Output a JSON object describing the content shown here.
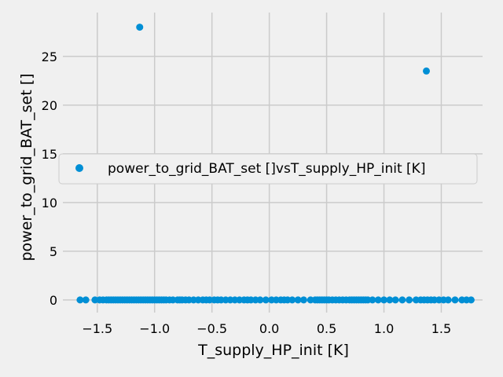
{
  "chart_data": {
    "type": "scatter",
    "xlabel": "T_supply_HP_init [K]",
    "ylabel": "power_to_grid_BAT_set []",
    "xlim": [
      -1.8,
      1.86
    ],
    "ylim": [
      -1.3,
      29.5
    ],
    "x_ticks": [
      -1.5,
      -1.0,
      -0.5,
      0.0,
      0.5,
      1.0,
      1.5
    ],
    "x_tick_labels": [
      "−1.5",
      "−1.0",
      "−0.5",
      "0.0",
      "0.5",
      "1.0",
      "1.5"
    ],
    "y_ticks": [
      0,
      5,
      10,
      15,
      20,
      25
    ],
    "y_tick_labels": [
      "0",
      "5",
      "10",
      "15",
      "20",
      "25"
    ],
    "grid": true,
    "legend_position": "center-right",
    "colors": {
      "marker": "#008fd5",
      "background": "#f0f0f0",
      "grid": "#cbcbcb"
    },
    "series": [
      {
        "name": "power_to_grid_BAT_set []vsT_supply_HP_init [K]",
        "points": [
          [
            -1.13,
            28.0
          ],
          [
            1.37,
            23.5
          ],
          [
            -1.65,
            0
          ],
          [
            -1.6,
            0
          ],
          [
            -1.52,
            0
          ],
          [
            -1.48,
            0
          ],
          [
            -1.45,
            0
          ],
          [
            -1.42,
            0
          ],
          [
            -1.4,
            0
          ],
          [
            -1.38,
            0
          ],
          [
            -1.36,
            0
          ],
          [
            -1.34,
            0
          ],
          [
            -1.32,
            0
          ],
          [
            -1.3,
            0
          ],
          [
            -1.28,
            0
          ],
          [
            -1.26,
            0
          ],
          [
            -1.24,
            0
          ],
          [
            -1.22,
            0
          ],
          [
            -1.2,
            0
          ],
          [
            -1.18,
            0
          ],
          [
            -1.16,
            0
          ],
          [
            -1.14,
            0
          ],
          [
            -1.12,
            0
          ],
          [
            -1.1,
            0
          ],
          [
            -1.08,
            0
          ],
          [
            -1.06,
            0
          ],
          [
            -1.04,
            0
          ],
          [
            -1.02,
            0
          ],
          [
            -1.0,
            0
          ],
          [
            -0.98,
            0
          ],
          [
            -0.96,
            0
          ],
          [
            -0.94,
            0
          ],
          [
            -0.92,
            0
          ],
          [
            -0.9,
            0
          ],
          [
            -0.87,
            0
          ],
          [
            -0.84,
            0
          ],
          [
            -0.8,
            0
          ],
          [
            -0.78,
            0
          ],
          [
            -0.76,
            0
          ],
          [
            -0.73,
            0
          ],
          [
            -0.7,
            0
          ],
          [
            -0.66,
            0
          ],
          [
            -0.62,
            0
          ],
          [
            -0.58,
            0
          ],
          [
            -0.55,
            0
          ],
          [
            -0.52,
            0
          ],
          [
            -0.48,
            0
          ],
          [
            -0.45,
            0
          ],
          [
            -0.42,
            0
          ],
          [
            -0.38,
            0
          ],
          [
            -0.34,
            0
          ],
          [
            -0.3,
            0
          ],
          [
            -0.26,
            0
          ],
          [
            -0.22,
            0
          ],
          [
            -0.19,
            0
          ],
          [
            -0.16,
            0
          ],
          [
            -0.12,
            0
          ],
          [
            -0.08,
            0
          ],
          [
            -0.03,
            0
          ],
          [
            0.02,
            0
          ],
          [
            0.06,
            0
          ],
          [
            0.1,
            0
          ],
          [
            0.13,
            0
          ],
          [
            0.16,
            0
          ],
          [
            0.2,
            0
          ],
          [
            0.25,
            0
          ],
          [
            0.3,
            0
          ],
          [
            0.36,
            0
          ],
          [
            0.4,
            0
          ],
          [
            0.42,
            0
          ],
          [
            0.44,
            0
          ],
          [
            0.46,
            0
          ],
          [
            0.48,
            0
          ],
          [
            0.5,
            0
          ],
          [
            0.52,
            0
          ],
          [
            0.55,
            0
          ],
          [
            0.58,
            0
          ],
          [
            0.61,
            0
          ],
          [
            0.64,
            0
          ],
          [
            0.67,
            0
          ],
          [
            0.7,
            0
          ],
          [
            0.72,
            0
          ],
          [
            0.74,
            0
          ],
          [
            0.76,
            0
          ],
          [
            0.78,
            0
          ],
          [
            0.8,
            0
          ],
          [
            0.82,
            0
          ],
          [
            0.84,
            0
          ],
          [
            0.86,
            0
          ],
          [
            0.9,
            0
          ],
          [
            0.95,
            0
          ],
          [
            1.0,
            0
          ],
          [
            1.05,
            0
          ],
          [
            1.1,
            0
          ],
          [
            1.16,
            0
          ],
          [
            1.22,
            0
          ],
          [
            1.28,
            0
          ],
          [
            1.32,
            0
          ],
          [
            1.35,
            0
          ],
          [
            1.38,
            0
          ],
          [
            1.41,
            0
          ],
          [
            1.44,
            0
          ],
          [
            1.48,
            0
          ],
          [
            1.52,
            0
          ],
          [
            1.56,
            0
          ],
          [
            1.62,
            0
          ],
          [
            1.68,
            0
          ],
          [
            1.72,
            0
          ],
          [
            1.76,
            0
          ]
        ]
      }
    ]
  }
}
